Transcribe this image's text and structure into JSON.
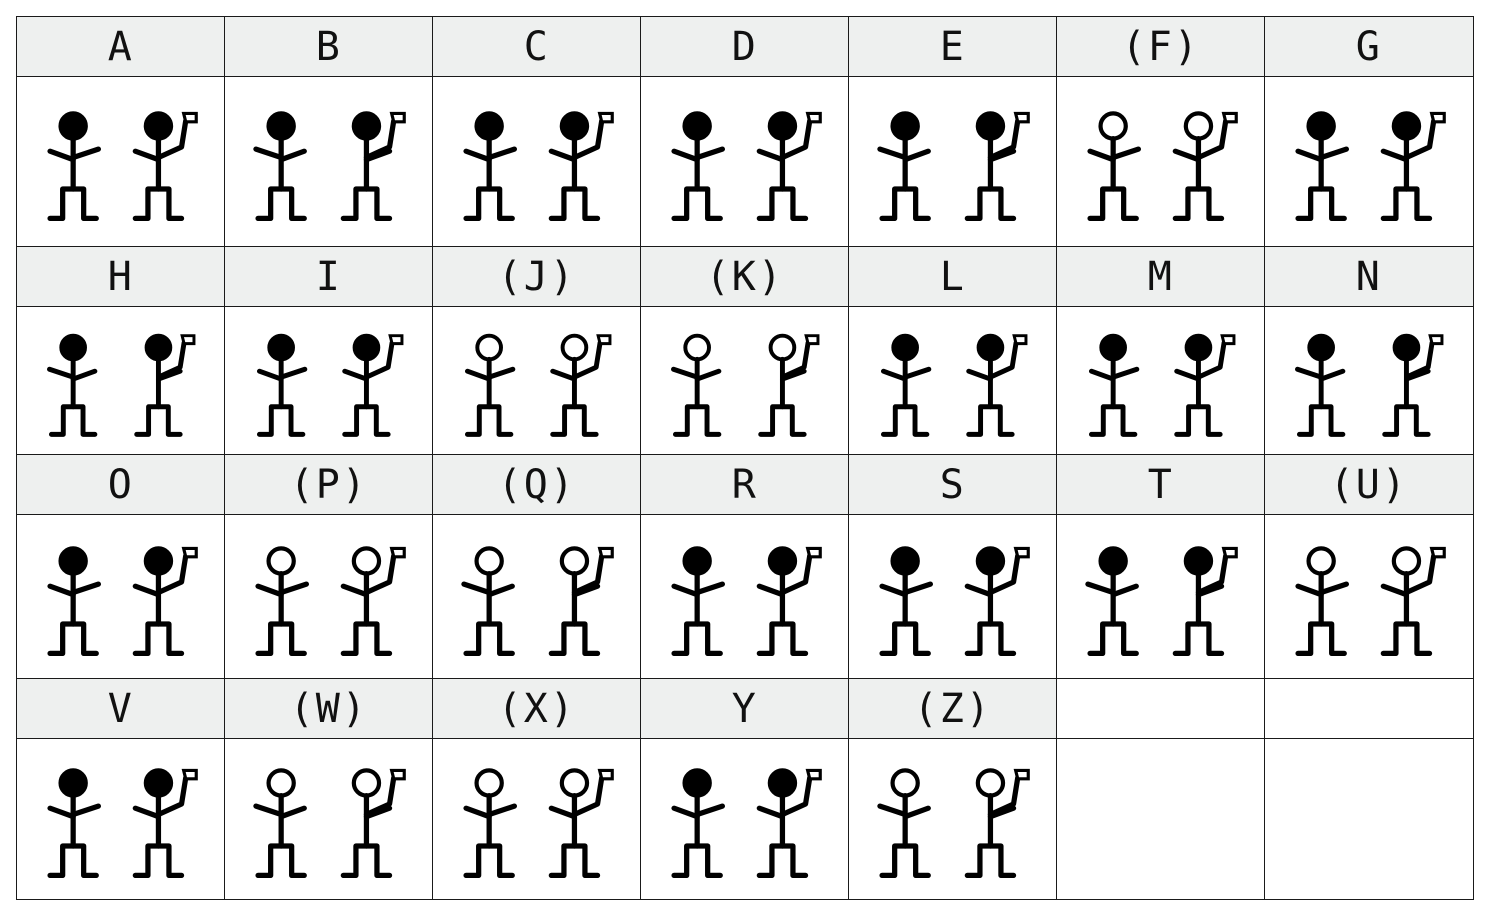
{
  "table": {
    "columns": 7,
    "letters": [
      {
        "label": "A",
        "head": "filled"
      },
      {
        "label": "B",
        "head": "filled"
      },
      {
        "label": "C",
        "head": "filled"
      },
      {
        "label": "D",
        "head": "filled"
      },
      {
        "label": "E",
        "head": "filled"
      },
      {
        "label": "(F)",
        "head": "open"
      },
      {
        "label": "G",
        "head": "filled"
      },
      {
        "label": "H",
        "head": "filled"
      },
      {
        "label": "I",
        "head": "filled"
      },
      {
        "label": "(J)",
        "head": "open"
      },
      {
        "label": "(K)",
        "head": "open"
      },
      {
        "label": "L",
        "head": "filled"
      },
      {
        "label": "M",
        "head": "filled"
      },
      {
        "label": "N",
        "head": "filled"
      },
      {
        "label": "O",
        "head": "filled"
      },
      {
        "label": "(P)",
        "head": "open"
      },
      {
        "label": "(Q)",
        "head": "open"
      },
      {
        "label": "R",
        "head": "filled"
      },
      {
        "label": "S",
        "head": "filled"
      },
      {
        "label": "T",
        "head": "filled"
      },
      {
        "label": "(U)",
        "head": "open"
      },
      {
        "label": "V",
        "head": "filled"
      },
      {
        "label": "(W)",
        "head": "open"
      },
      {
        "label": "(X)",
        "head": "open"
      },
      {
        "label": "Y",
        "head": "filled"
      },
      {
        "label": "(Z)",
        "head": "open"
      }
    ],
    "colors": {
      "border": "#1a1a1a",
      "label_background": "#eef0ef",
      "figure_ink": "#000000"
    }
  }
}
